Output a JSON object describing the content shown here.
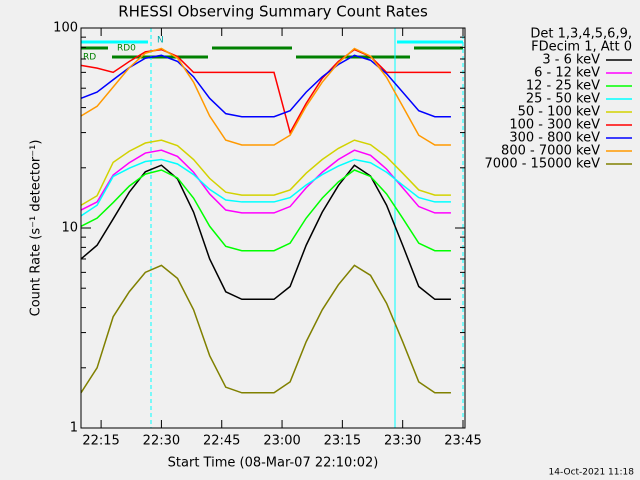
{
  "chart_data": {
    "type": "line",
    "title": "RHESSI Observing Summary Count Rates",
    "x_label": "Start Time (08-Mar-07 22:10:02)",
    "y_label": "Count Rate (s⁻¹ detector⁻¹)",
    "legend_header": [
      "Det 1,3,4,5,6,9,",
      "FDecim 1, Att 0"
    ],
    "footer": "14-Oct-2021 11:18",
    "annotations": [
      "RD0",
      "N",
      "RD"
    ],
    "log_y": true,
    "xlim": [
      10,
      105.5
    ],
    "xticks": [
      {
        "value": 15,
        "label": "22:15"
      },
      {
        "value": 30,
        "label": "22:30"
      },
      {
        "value": 45,
        "label": "22:45"
      },
      {
        "value": 60,
        "label": "23:00"
      },
      {
        "value": 75,
        "label": "23:15"
      },
      {
        "value": 90,
        "label": "23:30"
      },
      {
        "value": 105,
        "label": "23:45"
      }
    ],
    "ylim": [
      1,
      100
    ],
    "yticks": [
      1,
      10,
      100
    ],
    "yminorticks": [
      2,
      3,
      4,
      5,
      6,
      7,
      8,
      9,
      20,
      30,
      40,
      50,
      60,
      70,
      80,
      90
    ],
    "x": [
      10,
      14,
      18,
      22,
      26,
      30,
      34,
      38,
      42,
      46,
      50,
      54,
      58,
      62,
      66,
      70,
      74,
      78,
      82,
      86,
      90,
      94,
      98,
      102
    ],
    "series": [
      {
        "name": "3 - 6 keV",
        "color": "#000000",
        "values": [
          7.0,
          8.2,
          11.1,
          15.1,
          19.1,
          20.6,
          17.6,
          12.0,
          7.0,
          4.8,
          4.4,
          4.4,
          4.4,
          5.1,
          8.2,
          12.0,
          16.3,
          20.6,
          18.2,
          13.0,
          8.2,
          5.1,
          4.4,
          4.4
        ]
      },
      {
        "name": "6 - 12 keV",
        "color": "#ff00ff",
        "values": [
          12.3,
          13.5,
          18.4,
          21.2,
          23.7,
          24.5,
          22.8,
          19.0,
          14.8,
          12.3,
          11.9,
          11.9,
          11.9,
          12.8,
          15.9,
          19.0,
          22.0,
          24.5,
          23.1,
          19.7,
          15.9,
          12.8,
          11.9,
          11.9
        ]
      },
      {
        "name": "12 - 25 keV",
        "color": "#00ff00",
        "values": [
          10.2,
          11.2,
          13.4,
          16.2,
          18.6,
          19.5,
          17.8,
          14.1,
          10.2,
          8.1,
          7.7,
          7.7,
          7.7,
          8.4,
          11.2,
          14.1,
          17.0,
          19.5,
          18.1,
          14.8,
          11.2,
          8.4,
          7.7,
          7.7
        ]
      },
      {
        "name": "25 - 50 keV",
        "color": "#00ffff",
        "values": [
          11.5,
          13.0,
          18.1,
          19.9,
          21.5,
          22.0,
          20.9,
          18.5,
          15.6,
          13.8,
          13.5,
          13.5,
          13.5,
          14.2,
          16.4,
          18.5,
          20.4,
          22.0,
          21.2,
          19.0,
          16.4,
          14.2,
          13.5,
          13.5
        ]
      },
      {
        "name": "50 - 100 keV",
        "color": "#d2d200",
        "values": [
          13.0,
          14.5,
          21.3,
          24.2,
          26.6,
          27.5,
          25.8,
          22.0,
          17.7,
          15.1,
          14.6,
          14.6,
          14.6,
          15.5,
          18.8,
          22.0,
          25.0,
          27.5,
          26.1,
          22.7,
          18.8,
          15.5,
          14.6,
          14.6
        ]
      },
      {
        "name": "100 - 300 keV",
        "color": "#ff0000",
        "values": [
          65,
          63,
          60,
          68,
          76,
          78,
          72,
          60,
          60,
          60,
          60,
          60,
          60,
          30,
          42,
          56,
          68,
          78,
          72,
          60,
          60,
          60,
          60,
          60
        ]
      },
      {
        "name": "300 - 800 keV",
        "color": "#0000ff",
        "values": [
          44.5,
          47.8,
          55.1,
          63.4,
          70.6,
          73,
          68.1,
          57.0,
          44.5,
          37.3,
          36,
          36,
          36,
          38.6,
          47.8,
          57.0,
          65.7,
          73,
          69.0,
          59.1,
          47.8,
          38.6,
          36,
          36
        ]
      },
      {
        "name": "800 - 7000 keV",
        "color": "#ff9900",
        "values": [
          36.3,
          40.6,
          50.7,
          63.3,
          74.8,
          79,
          70.7,
          53.6,
          36.3,
          27.5,
          26,
          26,
          26,
          29.1,
          40.6,
          53.6,
          66.9,
          79,
          72.3,
          56.6,
          40.6,
          29.1,
          26,
          26
        ]
      },
      {
        "name": "7000 - 15000 keV",
        "color": "#808000",
        "values": [
          1.5,
          2.0,
          3.6,
          4.8,
          6.0,
          6.5,
          5.6,
          3.9,
          2.3,
          1.6,
          1.5,
          1.5,
          1.5,
          1.7,
          2.7,
          3.9,
          5.2,
          6.5,
          5.8,
          4.2,
          2.7,
          1.7,
          1.5,
          1.5
        ]
      }
    ]
  }
}
